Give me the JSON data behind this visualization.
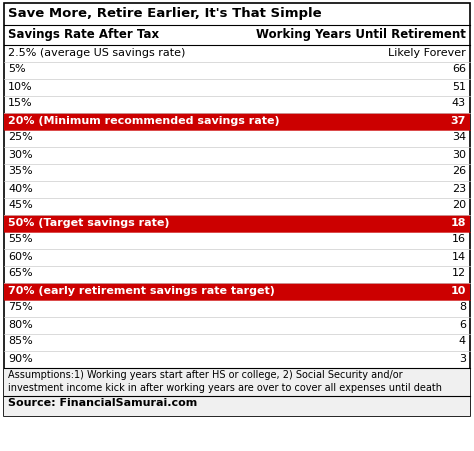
{
  "title": "Save More, Retire Earlier, It's That Simple",
  "col1_header": "Savings Rate After Tax",
  "col2_header": "Working Years Until Retirement",
  "rows": [
    {
      "label": "2.5% (average US savings rate)",
      "value": "Likely Forever",
      "highlight": false
    },
    {
      "label": "5%",
      "value": "66",
      "highlight": false
    },
    {
      "label": "10%",
      "value": "51",
      "highlight": false
    },
    {
      "label": "15%",
      "value": "43",
      "highlight": false
    },
    {
      "label": "20% (Minimum recommended savings rate)",
      "value": "37",
      "highlight": true
    },
    {
      "label": "25%",
      "value": "34",
      "highlight": false
    },
    {
      "label": "30%",
      "value": "30",
      "highlight": false
    },
    {
      "label": "35%",
      "value": "26",
      "highlight": false
    },
    {
      "label": "40%",
      "value": "23",
      "highlight": false
    },
    {
      "label": "45%",
      "value": "20",
      "highlight": false
    },
    {
      "label": "50% (Target savings rate)",
      "value": "18",
      "highlight": true
    },
    {
      "label": "55%",
      "value": "16",
      "highlight": false
    },
    {
      "label": "60%",
      "value": "14",
      "highlight": false
    },
    {
      "label": "65%",
      "value": "12",
      "highlight": false
    },
    {
      "label": "70% (early retirement savings rate target)",
      "value": "10",
      "highlight": true
    },
    {
      "label": "75%",
      "value": "8",
      "highlight": false
    },
    {
      "label": "80%",
      "value": "6",
      "highlight": false
    },
    {
      "label": "85%",
      "value": "4",
      "highlight": false
    },
    {
      "label": "90%",
      "value": "3",
      "highlight": false
    }
  ],
  "footnote1": "Assumptions:1) Working years start after HS or college, 2) Social Security and/or",
  "footnote2": "investment income kick in after working years are over to cover all expenses until death",
  "source": "Source: FinancialSamurai.com",
  "highlight_color": "#cc0000",
  "highlight_text_color": "#ffffff",
  "normal_bg_color": "#ffffff",
  "normal_text_color": "#000000",
  "border_color": "#000000",
  "sep_color": "#cccccc",
  "title_fontsize": 9.5,
  "header_fontsize": 8.5,
  "row_fontsize": 8.0,
  "footnote_fontsize": 7.0,
  "source_fontsize": 8.0
}
